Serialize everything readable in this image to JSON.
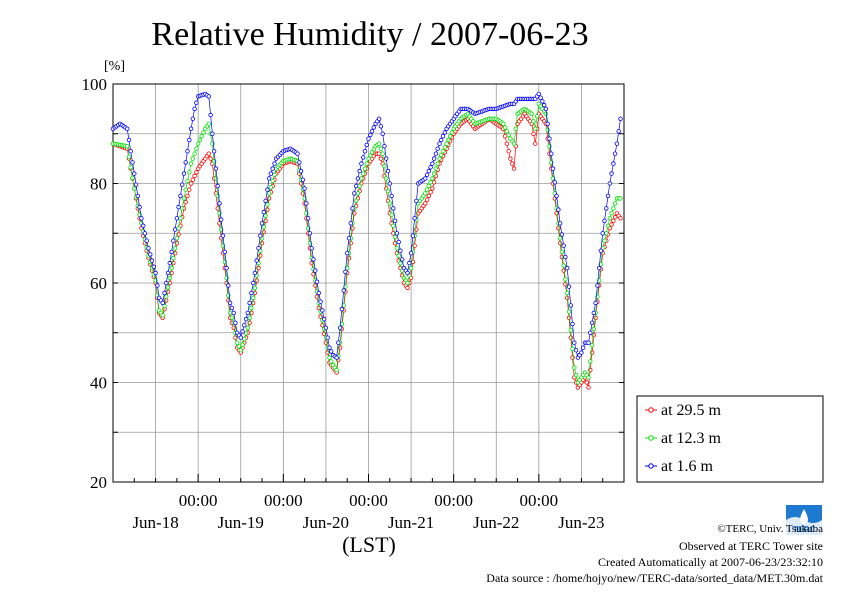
{
  "chart_data": {
    "type": "line",
    "title": "Relative Humidity / 2007-06-23",
    "ylabel": "[%]",
    "xlabel": "(LST)",
    "ylim": [
      20,
      100
    ],
    "yticks": [
      20,
      40,
      60,
      80,
      100
    ],
    "xlim_hours": [
      0,
      144
    ],
    "x_time_ticks": [
      "00:00",
      "00:00",
      "00:00",
      "00:00",
      "00:00"
    ],
    "x_day_labels": [
      "Jun-18",
      "Jun-19",
      "Jun-20",
      "Jun-21",
      "Jun-22",
      "Jun-23"
    ],
    "grid": true,
    "legend_position": "right-bottom",
    "series": [
      {
        "name": "at 29.5 m",
        "color": "#ff0000",
        "points": [
          [
            0,
            88
          ],
          [
            4,
            87
          ],
          [
            6,
            79
          ],
          [
            8,
            71
          ],
          [
            10,
            65
          ],
          [
            12,
            60
          ],
          [
            13,
            54
          ],
          [
            14,
            53
          ],
          [
            16,
            60
          ],
          [
            18,
            68
          ],
          [
            20,
            75
          ],
          [
            22,
            80
          ],
          [
            24,
            83
          ],
          [
            26,
            85
          ],
          [
            27,
            86
          ],
          [
            28,
            84
          ],
          [
            30,
            72
          ],
          [
            32,
            60
          ],
          [
            33,
            53
          ],
          [
            34,
            51
          ],
          [
            35,
            47
          ],
          [
            36,
            46
          ],
          [
            38,
            50
          ],
          [
            40,
            58
          ],
          [
            42,
            68
          ],
          [
            44,
            77
          ],
          [
            46,
            82
          ],
          [
            48,
            84
          ],
          [
            50,
            84.5
          ],
          [
            52,
            84
          ],
          [
            54,
            76
          ],
          [
            56,
            64
          ],
          [
            58,
            55
          ],
          [
            60,
            48
          ],
          [
            61,
            44
          ],
          [
            62,
            43
          ],
          [
            63,
            42
          ],
          [
            64,
            47
          ],
          [
            66,
            62
          ],
          [
            68,
            74
          ],
          [
            70,
            80
          ],
          [
            72,
            84
          ],
          [
            74,
            86
          ],
          [
            75,
            86
          ],
          [
            76,
            84
          ],
          [
            78,
            74
          ],
          [
            80,
            66
          ],
          [
            82,
            60
          ],
          [
            83,
            59
          ],
          [
            84,
            61
          ],
          [
            86,
            74
          ],
          [
            88,
            76
          ],
          [
            90,
            79
          ],
          [
            92,
            84
          ],
          [
            94,
            87
          ],
          [
            96,
            90
          ],
          [
            98,
            92
          ],
          [
            100,
            93
          ],
          [
            102,
            91
          ],
          [
            104,
            92
          ],
          [
            106,
            93
          ],
          [
            108,
            92
          ],
          [
            110,
            91
          ],
          [
            112,
            85
          ],
          [
            113,
            83
          ],
          [
            114,
            92
          ],
          [
            116,
            94
          ],
          [
            118,
            92
          ],
          [
            119,
            88
          ],
          [
            120,
            94
          ],
          [
            122,
            92
          ],
          [
            124,
            80
          ],
          [
            126,
            68
          ],
          [
            128,
            57
          ],
          [
            130,
            41
          ],
          [
            131,
            39
          ],
          [
            132,
            40
          ],
          [
            133,
            41
          ],
          [
            134,
            39
          ],
          [
            136,
            53
          ],
          [
            138,
            66
          ],
          [
            140,
            71
          ],
          [
            142,
            74
          ],
          [
            143,
            73
          ]
        ]
      },
      {
        "name": "at 12.3 m",
        "color": "#00e000",
        "points": [
          [
            0,
            88
          ],
          [
            4,
            87.5
          ],
          [
            6,
            79
          ],
          [
            8,
            72
          ],
          [
            10,
            65.5
          ],
          [
            12,
            60.5
          ],
          [
            13,
            54.5
          ],
          [
            14,
            53.5
          ],
          [
            16,
            61
          ],
          [
            18,
            69
          ],
          [
            20,
            77
          ],
          [
            22,
            84
          ],
          [
            24,
            88
          ],
          [
            26,
            91
          ],
          [
            27,
            92
          ],
          [
            28,
            88
          ],
          [
            30,
            74
          ],
          [
            32,
            61
          ],
          [
            33,
            54
          ],
          [
            34,
            52
          ],
          [
            35,
            48
          ],
          [
            36,
            46.5
          ],
          [
            38,
            51
          ],
          [
            40,
            59
          ],
          [
            42,
            69
          ],
          [
            44,
            78
          ],
          [
            46,
            83
          ],
          [
            48,
            84.5
          ],
          [
            50,
            85
          ],
          [
            52,
            84.5
          ],
          [
            54,
            77
          ],
          [
            56,
            65
          ],
          [
            58,
            56
          ],
          [
            60,
            49
          ],
          [
            61,
            45
          ],
          [
            62,
            43.5
          ],
          [
            63,
            42.5
          ],
          [
            64,
            48
          ],
          [
            66,
            63
          ],
          [
            68,
            75
          ],
          [
            70,
            81
          ],
          [
            72,
            85
          ],
          [
            74,
            87.5
          ],
          [
            75,
            88
          ],
          [
            76,
            86
          ],
          [
            78,
            76
          ],
          [
            80,
            67
          ],
          [
            82,
            61
          ],
          [
            83,
            60
          ],
          [
            84,
            63
          ],
          [
            86,
            76
          ],
          [
            88,
            78
          ],
          [
            90,
            81
          ],
          [
            92,
            85
          ],
          [
            94,
            88
          ],
          [
            96,
            91
          ],
          [
            98,
            93
          ],
          [
            100,
            94
          ],
          [
            102,
            92
          ],
          [
            104,
            92.5
          ],
          [
            106,
            93
          ],
          [
            108,
            93
          ],
          [
            110,
            92
          ],
          [
            112,
            89
          ],
          [
            113,
            88
          ],
          [
            114,
            94
          ],
          [
            116,
            95
          ],
          [
            118,
            94
          ],
          [
            119,
            91
          ],
          [
            120,
            96
          ],
          [
            122,
            94
          ],
          [
            124,
            81
          ],
          [
            126,
            69
          ],
          [
            128,
            58
          ],
          [
            130,
            43
          ],
          [
            131,
            40
          ],
          [
            132,
            41
          ],
          [
            133,
            42
          ],
          [
            134,
            41
          ],
          [
            136,
            54
          ],
          [
            138,
            67
          ],
          [
            140,
            73
          ],
          [
            142,
            77
          ],
          [
            143,
            77
          ]
        ]
      },
      {
        "name": "at 1.6 m",
        "color": "#0000ff",
        "points": [
          [
            0,
            91
          ],
          [
            2,
            92
          ],
          [
            4,
            91
          ],
          [
            6,
            82
          ],
          [
            8,
            73
          ],
          [
            10,
            67
          ],
          [
            12,
            62
          ],
          [
            13,
            57
          ],
          [
            14,
            56
          ],
          [
            16,
            64
          ],
          [
            18,
            73
          ],
          [
            20,
            82
          ],
          [
            22,
            91
          ],
          [
            23,
            95
          ],
          [
            24,
            97.5
          ],
          [
            26,
            98
          ],
          [
            27,
            97.5
          ],
          [
            28,
            90
          ],
          [
            30,
            76
          ],
          [
            32,
            63
          ],
          [
            33,
            56
          ],
          [
            34,
            54
          ],
          [
            35,
            50
          ],
          [
            36,
            49
          ],
          [
            38,
            54
          ],
          [
            40,
            62
          ],
          [
            42,
            72
          ],
          [
            44,
            81
          ],
          [
            46,
            85
          ],
          [
            48,
            86.5
          ],
          [
            50,
            87
          ],
          [
            52,
            86
          ],
          [
            54,
            79
          ],
          [
            56,
            67
          ],
          [
            58,
            58
          ],
          [
            60,
            51
          ],
          [
            61,
            47
          ],
          [
            62,
            45.5
          ],
          [
            63,
            45
          ],
          [
            64,
            51
          ],
          [
            66,
            66
          ],
          [
            68,
            78
          ],
          [
            70,
            84
          ],
          [
            72,
            89
          ],
          [
            74,
            92
          ],
          [
            75,
            93
          ],
          [
            76,
            90
          ],
          [
            78,
            80
          ],
          [
            80,
            70
          ],
          [
            82,
            63
          ],
          [
            83,
            62
          ],
          [
            84,
            66
          ],
          [
            86,
            80
          ],
          [
            88,
            81
          ],
          [
            90,
            84
          ],
          [
            92,
            88
          ],
          [
            94,
            91
          ],
          [
            96,
            93
          ],
          [
            98,
            95
          ],
          [
            100,
            95
          ],
          [
            102,
            94
          ],
          [
            104,
            94.5
          ],
          [
            106,
            95
          ],
          [
            108,
            95
          ],
          [
            110,
            95.5
          ],
          [
            112,
            96
          ],
          [
            113,
            96
          ],
          [
            114,
            97
          ],
          [
            116,
            97
          ],
          [
            118,
            97
          ],
          [
            119,
            97
          ],
          [
            120,
            98
          ],
          [
            122,
            95
          ],
          [
            124,
            83
          ],
          [
            126,
            72
          ],
          [
            128,
            63
          ],
          [
            130,
            48
          ],
          [
            131,
            45
          ],
          [
            132,
            46
          ],
          [
            133,
            48
          ],
          [
            134,
            48
          ],
          [
            136,
            56
          ],
          [
            138,
            70
          ],
          [
            140,
            80
          ],
          [
            142,
            88
          ],
          [
            143,
            93
          ]
        ]
      }
    ]
  },
  "footer": {
    "copyright": "©TERC, Univ. Tsukuba",
    "observed": "Observed at TERC Tower site",
    "created": "Created Automatically at 2007-06-23/23:32:10",
    "source": "Data source : /home/hojyo/new/TERC-data/sorted_data/MET.30m.dat",
    "logo_text": "TERC"
  }
}
